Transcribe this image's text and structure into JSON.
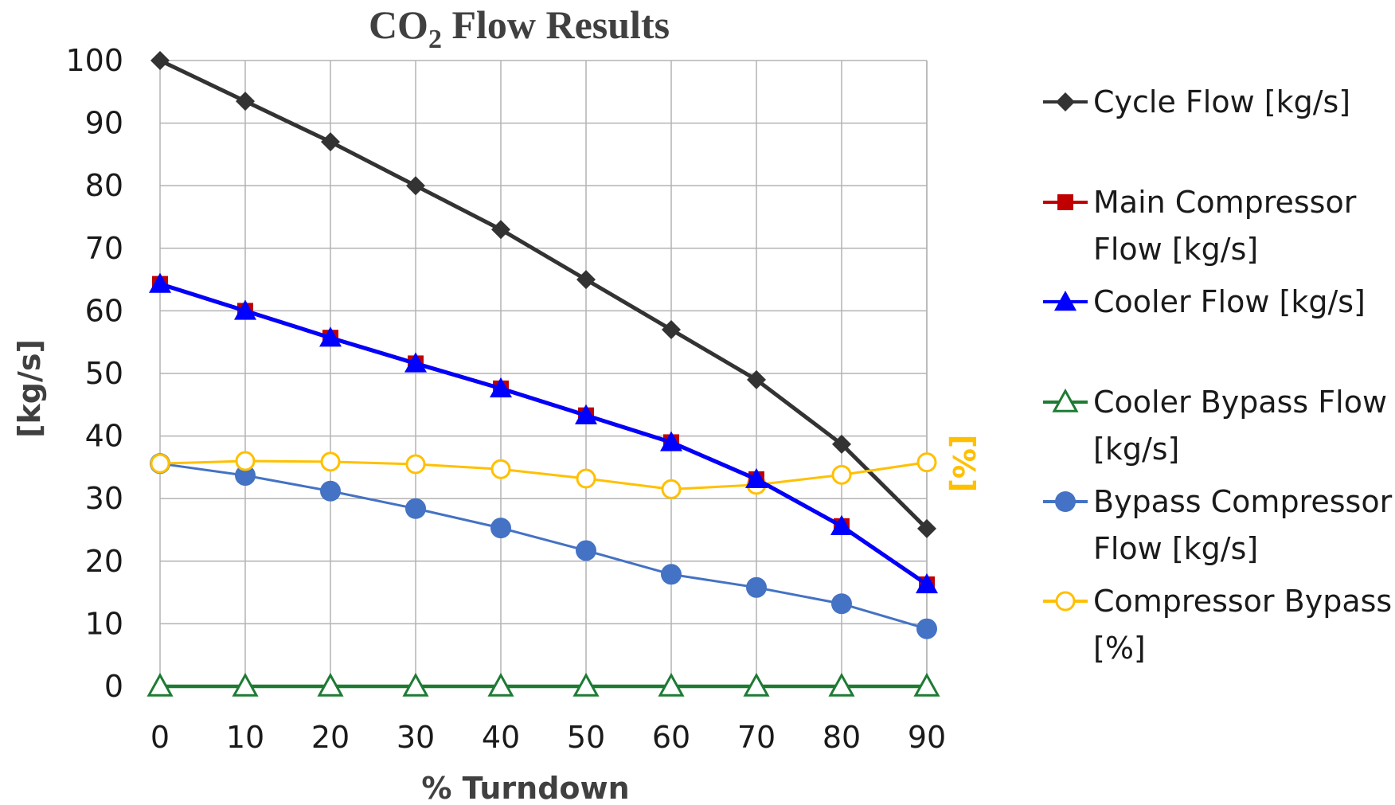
{
  "chart_data": {
    "type": "line",
    "title": {
      "main": "CO",
      "subscript": "2",
      "rest": " Flow Results"
    },
    "xlabel": "% Turndown",
    "ylabel": "[kg/s]",
    "y2label": "[%]",
    "x": [
      0,
      10,
      20,
      30,
      40,
      50,
      60,
      70,
      80,
      90
    ],
    "xlim": [
      0,
      90
    ],
    "ylim": [
      0,
      100
    ],
    "yticks": [
      0,
      10,
      20,
      30,
      40,
      50,
      60,
      70,
      80,
      90,
      100
    ],
    "grid": true,
    "legend_position": "right",
    "series": [
      {
        "name_lines": [
          "Cycle Flow [kg/s]"
        ],
        "marker": "diamond",
        "color": "#333333",
        "values": [
          100,
          93.5,
          87,
          80,
          73,
          65,
          57,
          49,
          38.7,
          25.2
        ]
      },
      {
        "name_lines": [
          "Main Compressor",
          "Flow [kg/s]"
        ],
        "marker": "square",
        "color": "#C00000",
        "values": [
          64.3,
          60,
          55.7,
          51.6,
          47.6,
          43.3,
          39,
          33.1,
          25.6,
          16.3
        ]
      },
      {
        "name_lines": [
          "Cooler Flow [kg/s]"
        ],
        "marker": "triangle",
        "color": "#0000FF",
        "values": [
          64.3,
          60,
          55.7,
          51.6,
          47.6,
          43.3,
          39,
          33.1,
          25.6,
          16.3
        ]
      },
      {
        "name_lines": [
          "Cooler Bypass Flow",
          "[kg/s]"
        ],
        "marker": "triangle-open",
        "color": "#1E7B34",
        "values": [
          0,
          0,
          0,
          0,
          0,
          0,
          0,
          0,
          0,
          0
        ]
      },
      {
        "name_lines": [
          "Bypass Compressor",
          "Flow [kg/s]"
        ],
        "marker": "circle",
        "color": "#4472C4",
        "values": [
          35.6,
          33.7,
          31.2,
          28.4,
          25.3,
          21.7,
          17.9,
          15.8,
          13.2,
          9.2
        ]
      },
      {
        "name_lines": [
          "Compressor Bypass",
          "[%]"
        ],
        "marker": "circle-open",
        "color": "#FFC000",
        "values": [
          35.6,
          36,
          35.9,
          35.5,
          34.7,
          33.2,
          31.5,
          32.2,
          33.8,
          35.8
        ]
      }
    ]
  }
}
